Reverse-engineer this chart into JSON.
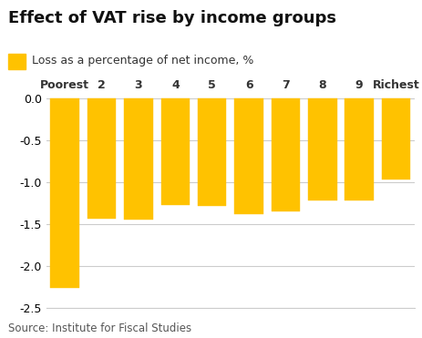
{
  "title": "Effect of VAT rise by income groups",
  "legend_label": "Loss as a percentage of net income, %",
  "source": "Source: Institute for Fiscal Studies",
  "categories": [
    "Poorest",
    "2",
    "3",
    "4",
    "5",
    "6",
    "7",
    "8",
    "9",
    "Richest"
  ],
  "values": [
    -2.26,
    -1.43,
    -1.45,
    -1.27,
    -1.28,
    -1.38,
    -1.35,
    -1.22,
    -1.22,
    -0.97
  ],
  "bar_color": "#FFC200",
  "bar_edge_color": "#FFC200",
  "background_color": "#FFFFFF",
  "ylim": [
    -2.5,
    0.05
  ],
  "yticks": [
    0.0,
    -0.5,
    -1.0,
    -1.5,
    -2.0,
    -2.5
  ],
  "grid_color": "#CCCCCC",
  "title_fontsize": 13,
  "legend_fontsize": 9,
  "tick_fontsize": 9,
  "source_fontsize": 8.5
}
